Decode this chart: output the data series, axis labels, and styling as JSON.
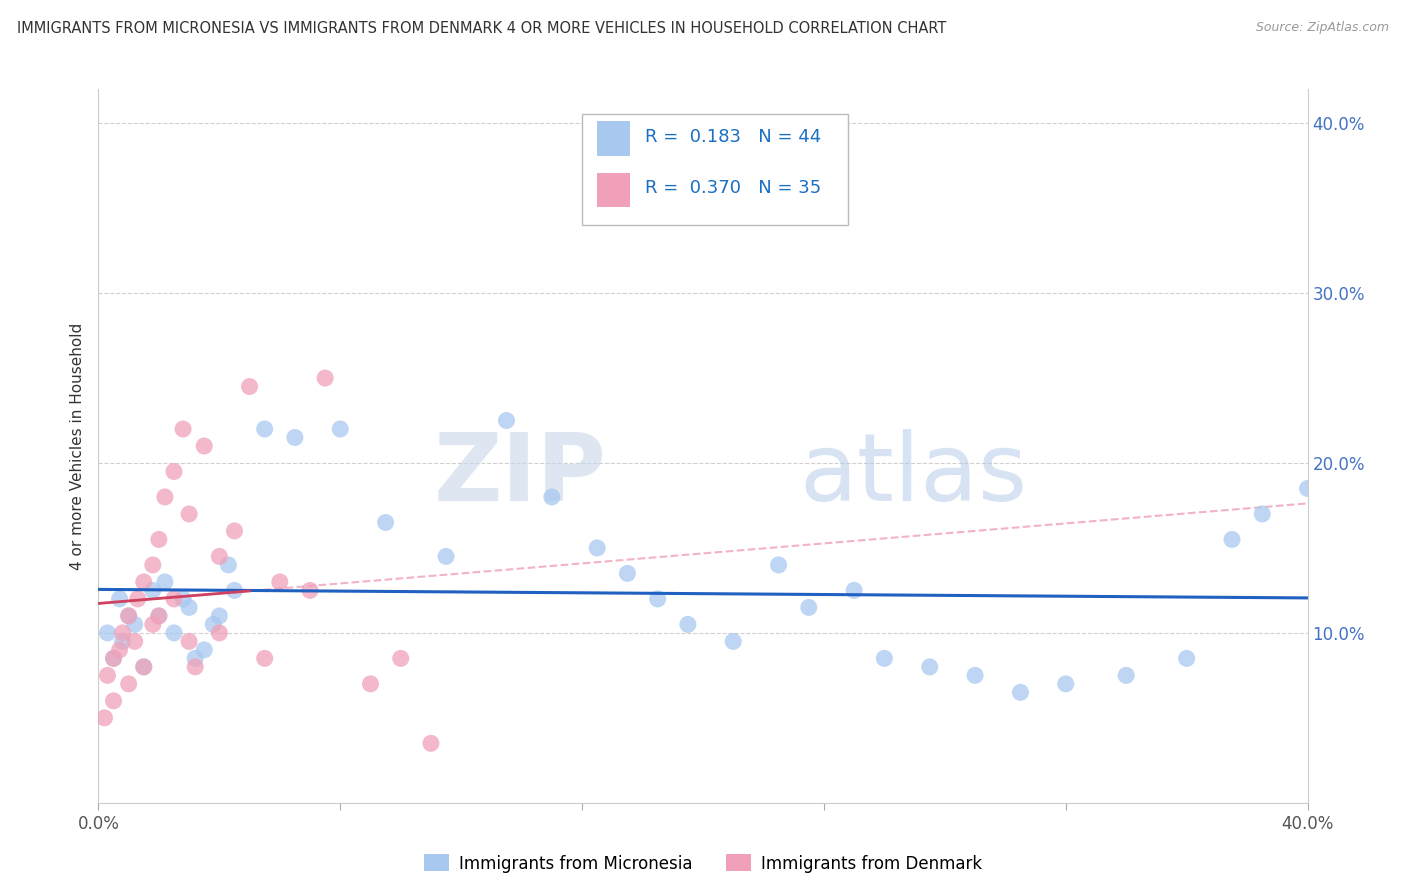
{
  "title": "IMMIGRANTS FROM MICRONESIA VS IMMIGRANTS FROM DENMARK 4 OR MORE VEHICLES IN HOUSEHOLD CORRELATION CHART",
  "source": "Source: ZipAtlas.com",
  "ylabel": "4 or more Vehicles in Household",
  "ytick_labels": [
    "10.0%",
    "20.0%",
    "30.0%",
    "40.0%"
  ],
  "ytick_vals": [
    10,
    20,
    30,
    40
  ],
  "xlim": [
    0,
    40
  ],
  "ylim": [
    0,
    42
  ],
  "r_micronesia": 0.183,
  "n_micronesia": 44,
  "r_denmark": 0.37,
  "n_denmark": 35,
  "color_micronesia": "#a8c8f0",
  "color_denmark": "#f0a0b8",
  "line_color_micronesia": "#2060c0",
  "line_color_denmark": "#d04060",
  "dashed_line_color": "#f0a0b8",
  "background_color": "#ffffff",
  "grid_color": "#d0d0d0",
  "watermark_zip": "ZIP",
  "watermark_atlas": "atlas",
  "scatter_micronesia_x": [
    0.3,
    0.5,
    0.7,
    0.8,
    1.0,
    1.2,
    1.5,
    1.8,
    2.0,
    2.2,
    2.5,
    2.8,
    3.0,
    3.2,
    3.5,
    3.8,
    4.0,
    4.3,
    4.5,
    5.5,
    6.5,
    8.0,
    9.5,
    11.5,
    13.5,
    15.0,
    16.5,
    17.5,
    18.5,
    19.5,
    21.0,
    22.5,
    23.5,
    25.0,
    26.0,
    27.5,
    29.0,
    30.5,
    32.0,
    34.0,
    36.0,
    37.5,
    38.5,
    40.0
  ],
  "scatter_micronesia_y": [
    10.0,
    8.5,
    12.0,
    9.5,
    11.0,
    10.5,
    8.0,
    12.5,
    11.0,
    13.0,
    10.0,
    12.0,
    11.5,
    8.5,
    9.0,
    10.5,
    11.0,
    14.0,
    12.5,
    22.0,
    21.5,
    22.0,
    16.5,
    14.5,
    22.5,
    18.0,
    15.0,
    13.5,
    12.0,
    10.5,
    9.5,
    14.0,
    11.5,
    12.5,
    8.5,
    8.0,
    7.5,
    6.5,
    7.0,
    7.5,
    8.5,
    15.5,
    17.0,
    18.5
  ],
  "scatter_denmark_x": [
    0.2,
    0.3,
    0.5,
    0.5,
    0.7,
    0.8,
    1.0,
    1.0,
    1.2,
    1.3,
    1.5,
    1.5,
    1.8,
    1.8,
    2.0,
    2.0,
    2.2,
    2.5,
    2.5,
    2.8,
    3.0,
    3.0,
    3.2,
    3.5,
    4.0,
    4.0,
    4.5,
    5.0,
    5.5,
    6.0,
    7.0,
    7.5,
    9.0,
    10.0,
    11.0
  ],
  "scatter_denmark_y": [
    5.0,
    7.5,
    6.0,
    8.5,
    9.0,
    10.0,
    7.0,
    11.0,
    9.5,
    12.0,
    8.0,
    13.0,
    10.5,
    14.0,
    11.0,
    15.5,
    18.0,
    12.0,
    19.5,
    22.0,
    9.5,
    17.0,
    8.0,
    21.0,
    14.5,
    10.0,
    16.0,
    24.5,
    8.5,
    13.0,
    12.5,
    25.0,
    7.0,
    8.5,
    3.5
  ]
}
